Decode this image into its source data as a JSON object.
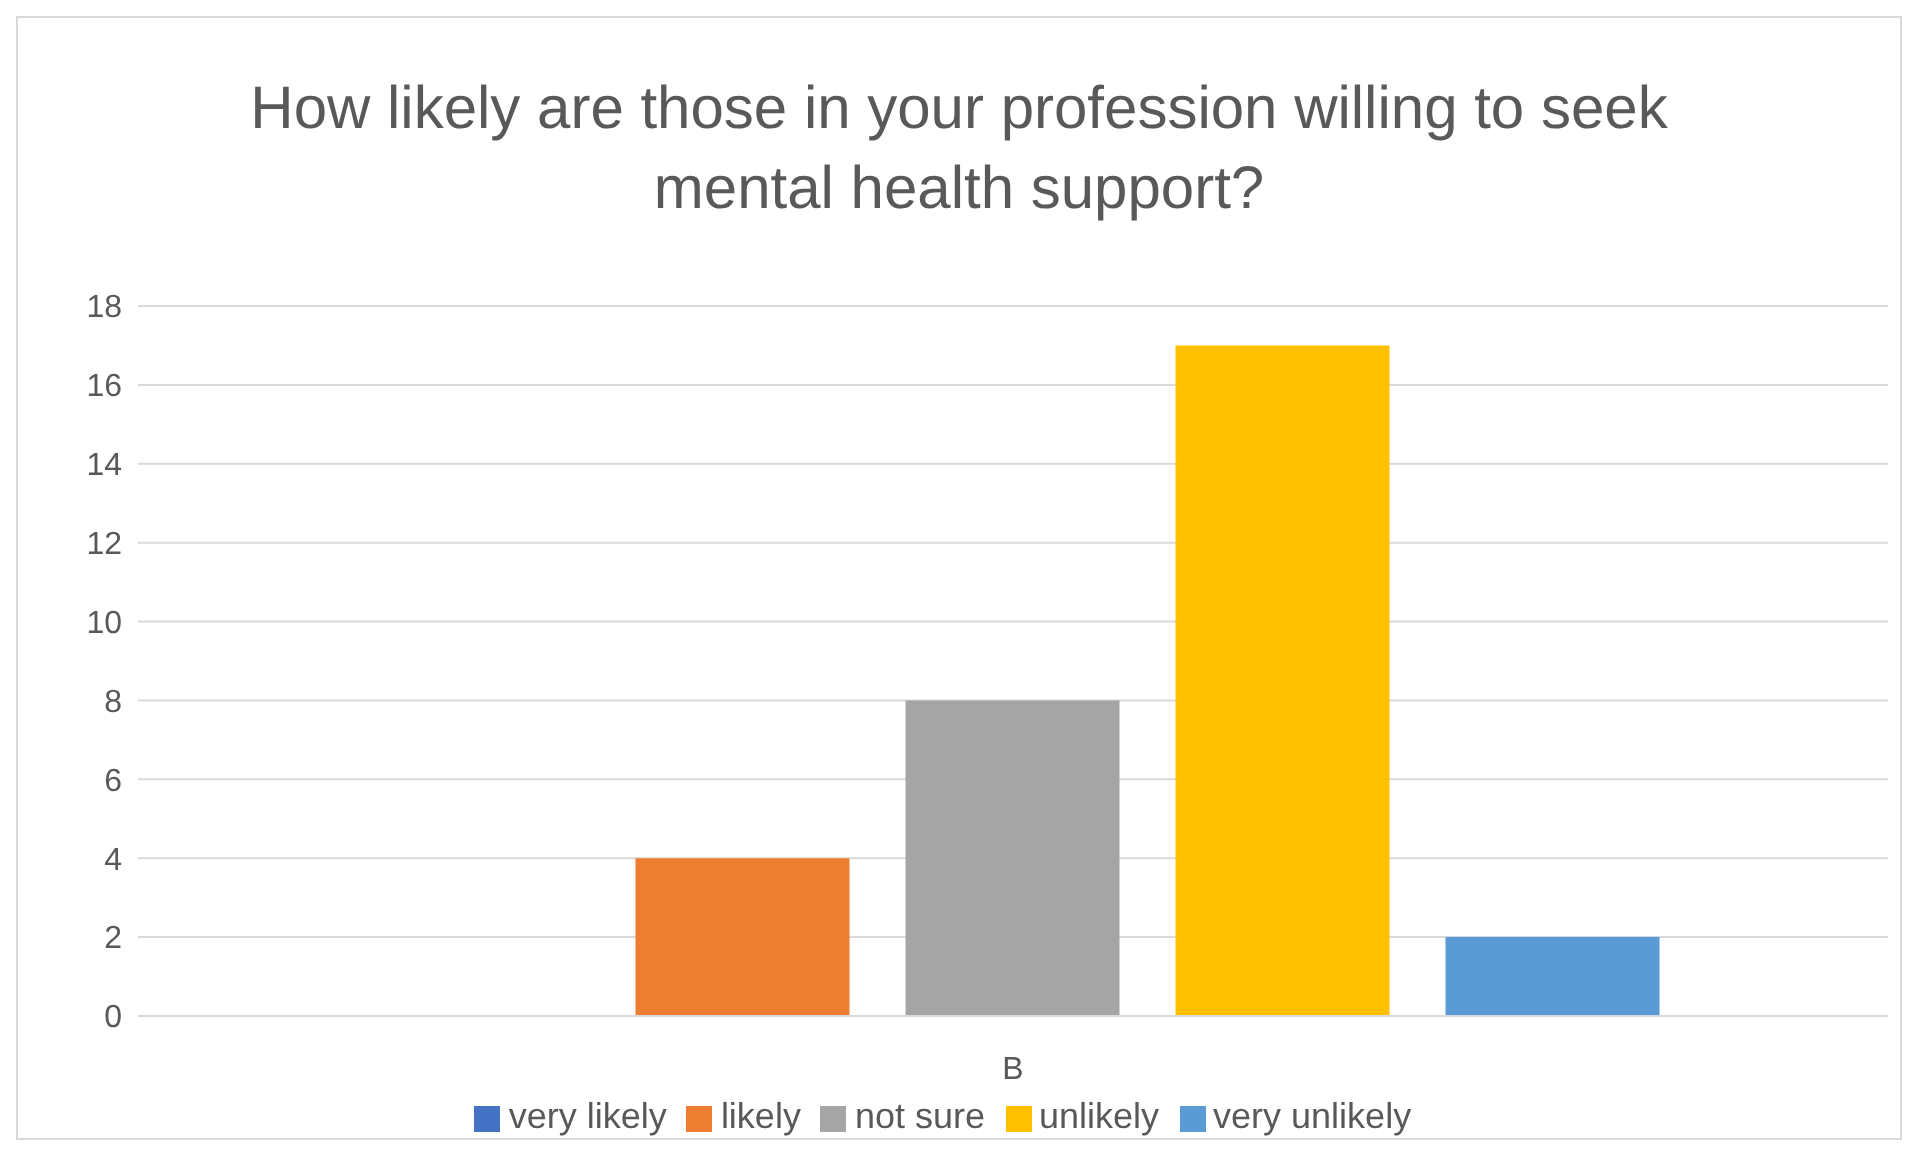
{
  "chart_data": {
    "type": "bar",
    "title": "How likely are those in your profession willing to seek mental health support?",
    "categories": [
      "B"
    ],
    "series": [
      {
        "name": "very likely",
        "color": "#4472c4",
        "values": [
          0
        ]
      },
      {
        "name": "likely",
        "color": "#ed7d31",
        "values": [
          4
        ]
      },
      {
        "name": "not sure",
        "color": "#a5a5a5",
        "values": [
          8
        ]
      },
      {
        "name": "unlikely",
        "color": "#ffc000",
        "values": [
          17
        ]
      },
      {
        "name": "very unlikely",
        "color": "#5b9bd5",
        "values": [
          2
        ]
      }
    ],
    "ylim": [
      0,
      18
    ],
    "yticks": [
      0,
      2,
      4,
      6,
      8,
      10,
      12,
      14,
      16,
      18
    ],
    "grid": "y",
    "legend": "bottom"
  }
}
